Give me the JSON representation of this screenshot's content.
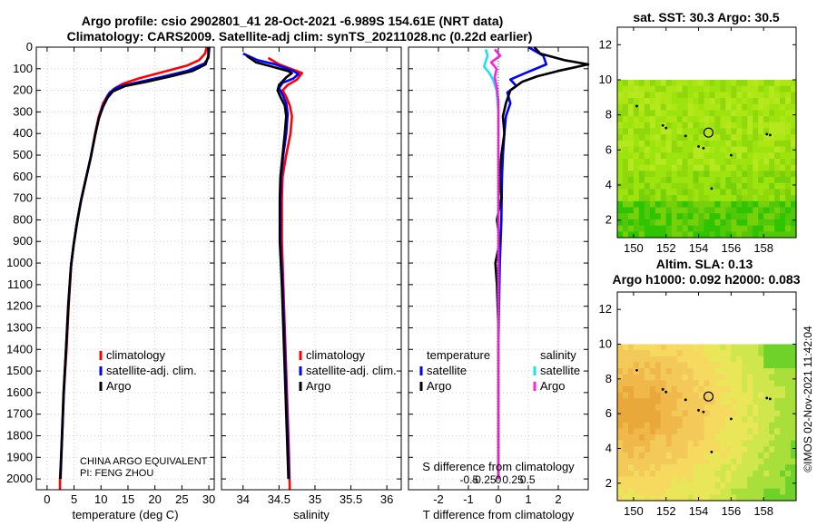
{
  "titles": {
    "line1": "Argo profile: csio 2902801_41 28-Oct-2021 -6.989S 154.61E (NRT data)",
    "line2": "Climatology: CARS2009. Satellite-adj clim: synTS_20211028.nc (0.22d earlier)"
  },
  "colors": {
    "climatology": "#ff0000",
    "satellite": "#0000ff",
    "argo": "#000000",
    "sat_salinity": "#22e0ee",
    "argo_salinity": "#ff22dd"
  },
  "credits": {
    "line1": "CHINA ARGO EQUIVALENT",
    "line2": "PI: FENG ZHOU",
    "watermark": "©IMOS 02-Nov-2021 11:42:04"
  },
  "chart_data": [
    {
      "id": "temperature",
      "type": "line",
      "xlabel": "temperature (deg C)",
      "ylabel": "",
      "xlim": [
        -2,
        31
      ],
      "ylim": [
        0,
        2050
      ],
      "xticks": [
        0,
        5,
        10,
        15,
        20,
        25,
        30
      ],
      "yticks": [
        0,
        100,
        200,
        300,
        400,
        500,
        600,
        700,
        800,
        900,
        1000,
        1100,
        1200,
        1300,
        1400,
        1500,
        1600,
        1700,
        1800,
        1900,
        2000
      ],
      "legend": [
        "climatology",
        "satellite-adj. clim.",
        "Argo"
      ],
      "series": [
        {
          "name": "climatology",
          "color": "#ff0000",
          "points": [
            [
              29.6,
              0
            ],
            [
              29.3,
              30
            ],
            [
              28.2,
              60
            ],
            [
              26,
              85
            ],
            [
              23,
              105
            ],
            [
              20,
              125
            ],
            [
              17,
              145
            ],
            [
              14,
              170
            ],
            [
              12.3,
              195
            ],
            [
              11.3,
              220
            ],
            [
              10.4,
              260
            ],
            [
              9.6,
              320
            ],
            [
              8.9,
              400
            ],
            [
              8.2,
              500
            ],
            [
              7.3,
              600
            ],
            [
              6.4,
              700
            ],
            [
              5.6,
              800
            ],
            [
              5.0,
              900
            ],
            [
              4.5,
              1000
            ],
            [
              4.0,
              1200
            ],
            [
              3.6,
              1400
            ],
            [
              3.1,
              1600
            ],
            [
              2.8,
              1800
            ],
            [
              2.6,
              1900
            ],
            [
              2.4,
              2000
            ],
            [
              2.4,
              2050
            ]
          ]
        },
        {
          "name": "satellite-adj. clim.",
          "color": "#0000ff",
          "points": [
            [
              30.1,
              0
            ],
            [
              30.0,
              25
            ],
            [
              29.9,
              50
            ],
            [
              29.2,
              75
            ],
            [
              26,
              110
            ],
            [
              21,
              140
            ],
            [
              16.5,
              165
            ],
            [
              13,
              185
            ],
            [
              11.6,
              210
            ],
            [
              11.0,
              240
            ],
            [
              10.2,
              280
            ],
            [
              9.5,
              340
            ],
            [
              8.8,
              420
            ],
            [
              8.0,
              520
            ],
            [
              7.1,
              620
            ],
            [
              6.2,
              720
            ],
            [
              5.5,
              820
            ],
            [
              4.9,
              920
            ],
            [
              4.4,
              1020
            ],
            [
              3.9,
              1200
            ],
            [
              3.5,
              1400
            ],
            [
              3.1,
              1600
            ],
            [
              2.8,
              1800
            ],
            [
              2.5,
              2000
            ]
          ]
        },
        {
          "name": "Argo",
          "color": "#000000",
          "points": [
            [
              29.9,
              0
            ],
            [
              29.9,
              40
            ],
            [
              29.4,
              80
            ],
            [
              27,
              110
            ],
            [
              23,
              135
            ],
            [
              18.5,
              160
            ],
            [
              14.5,
              180
            ],
            [
              12.2,
              205
            ],
            [
              11.2,
              235
            ],
            [
              10.4,
              275
            ],
            [
              9.6,
              330
            ],
            [
              8.9,
              410
            ],
            [
              8.1,
              510
            ],
            [
              7.2,
              610
            ],
            [
              6.3,
              710
            ],
            [
              5.6,
              810
            ],
            [
              4.95,
              910
            ],
            [
              4.45,
              1010
            ],
            [
              3.95,
              1200
            ],
            [
              3.5,
              1400
            ],
            [
              3.05,
              1600
            ],
            [
              2.75,
              1800
            ],
            [
              2.45,
              2000
            ]
          ]
        }
      ]
    },
    {
      "id": "salinity",
      "type": "line",
      "xlabel": "salinity",
      "xlim": [
        33.7,
        36.2
      ],
      "ylim": [
        0,
        2050
      ],
      "xticks": [
        34,
        34.5,
        35,
        35.5,
        36
      ],
      "xtick_labels": [
        "34",
        "34.5",
        "35",
        "35.5",
        "36"
      ],
      "legend": [
        "climatology",
        "satellite-adj. clim.",
        "Argo"
      ],
      "series": [
        {
          "name": "climatology",
          "color": "#ff0000",
          "points": [
            [
              34.35,
              50
            ],
            [
              34.5,
              80
            ],
            [
              34.7,
              105
            ],
            [
              34.82,
              120
            ],
            [
              34.75,
              150
            ],
            [
              34.62,
              175
            ],
            [
              34.55,
              200
            ],
            [
              34.6,
              230
            ],
            [
              34.65,
              270
            ],
            [
              34.68,
              320
            ],
            [
              34.66,
              400
            ],
            [
              34.6,
              500
            ],
            [
              34.55,
              600
            ],
            [
              34.54,
              700
            ],
            [
              34.54,
              900
            ],
            [
              34.56,
              1100
            ],
            [
              34.58,
              1300
            ],
            [
              34.6,
              1500
            ],
            [
              34.62,
              1700
            ],
            [
              34.64,
              1900
            ],
            [
              34.65,
              2050
            ]
          ]
        },
        {
          "name": "satellite-adj. clim.",
          "color": "#0000ff",
          "points": [
            [
              34.0,
              30
            ],
            [
              34.2,
              60
            ],
            [
              34.45,
              80
            ],
            [
              34.7,
              110
            ],
            [
              34.77,
              125
            ],
            [
              34.7,
              145
            ],
            [
              34.55,
              165
            ],
            [
              34.5,
              190
            ],
            [
              34.55,
              220
            ],
            [
              34.6,
              260
            ],
            [
              34.62,
              310
            ],
            [
              34.6,
              400
            ],
            [
              34.56,
              500
            ],
            [
              34.53,
              600
            ],
            [
              34.52,
              700
            ],
            [
              34.52,
              900
            ],
            [
              34.55,
              1100
            ],
            [
              34.57,
              1300
            ],
            [
              34.59,
              1500
            ],
            [
              34.61,
              1700
            ],
            [
              34.63,
              1900
            ],
            [
              34.64,
              2000
            ]
          ]
        },
        {
          "name": "Argo",
          "color": "#000000",
          "points": [
            [
              34.05,
              40
            ],
            [
              34.18,
              70
            ],
            [
              34.4,
              90
            ],
            [
              34.62,
              110
            ],
            [
              34.68,
              120
            ],
            [
              34.6,
              140
            ],
            [
              34.5,
              175
            ],
            [
              34.48,
              200
            ],
            [
              34.52,
              230
            ],
            [
              34.58,
              270
            ],
            [
              34.6,
              320
            ],
            [
              34.58,
              400
            ],
            [
              34.55,
              500
            ],
            [
              34.52,
              600
            ],
            [
              34.51,
              700
            ],
            [
              34.51,
              900
            ],
            [
              34.54,
              1100
            ],
            [
              34.56,
              1300
            ],
            [
              34.58,
              1500
            ],
            [
              34.6,
              1700
            ],
            [
              34.62,
              1900
            ],
            [
              34.63,
              2000
            ]
          ]
        }
      ]
    },
    {
      "id": "differences",
      "type": "line",
      "xlabel": "T difference from climatology",
      "xlabel_top": "S difference from climatology",
      "xlim": [
        -3,
        3
      ],
      "ylim": [
        0,
        2050
      ],
      "xticks": [
        -2,
        -1,
        0,
        1,
        2
      ],
      "sticks": [
        -0.5,
        -0.25,
        0,
        0.25,
        0.5
      ],
      "stick_labels": [
        "-0.5",
        "-0.25",
        "0",
        "0.25",
        "0.5"
      ],
      "legend_temperature_title": "temperature",
      "legend_salinity_title": "salinity",
      "legend_temperature": [
        "satellite",
        "Argo"
      ],
      "legend_salinity": [
        "satellite",
        "Argo"
      ],
      "series": [
        {
          "name": "temperature satellite",
          "color": "#0000ff",
          "points": [
            [
              1,
              0
            ],
            [
              1.5,
              40
            ],
            [
              1.6,
              80
            ],
            [
              0.9,
              120
            ],
            [
              0.4,
              150
            ],
            [
              0.6,
              180
            ],
            [
              0.3,
              210
            ],
            [
              0.4,
              260
            ],
            [
              0.25,
              320
            ],
            [
              0.2,
              400
            ],
            [
              0.15,
              500
            ],
            [
              0.12,
              600
            ],
            [
              0.1,
              800
            ],
            [
              0.05,
              1000
            ],
            [
              0.02,
              1200
            ],
            [
              0,
              1400
            ],
            [
              0,
              2000
            ]
          ]
        },
        {
          "name": "temperature Argo",
          "color": "#000000",
          "points": [
            [
              1.2,
              0
            ],
            [
              1.4,
              30
            ],
            [
              2.2,
              60
            ],
            [
              3,
              80
            ],
            [
              2,
              110
            ],
            [
              1.3,
              135
            ],
            [
              0.8,
              160
            ],
            [
              0.4,
              200
            ],
            [
              0.25,
              260
            ],
            [
              0.15,
              320
            ],
            [
              0.2,
              400
            ],
            [
              0.1,
              500
            ],
            [
              0.05,
              600
            ],
            [
              0.1,
              700
            ],
            [
              -0.05,
              800
            ],
            [
              0.05,
              900
            ],
            [
              -0.1,
              1000
            ],
            [
              -0.05,
              1100
            ],
            [
              0,
              1300
            ],
            [
              0,
              2000
            ]
          ]
        },
        {
          "name": "salinity satellite",
          "color": "#22e0ee",
          "points": [
            [
              -0.35,
              10
            ],
            [
              -0.3,
              40
            ],
            [
              -0.4,
              90
            ],
            [
              -0.25,
              120
            ],
            [
              -0.15,
              150
            ],
            [
              -0.05,
              200
            ],
            [
              0,
              300
            ],
            [
              0,
              2000
            ]
          ]
        },
        {
          "name": "salinity Argo",
          "color": "#ff22dd",
          "points": [
            [
              -0.1,
              10
            ],
            [
              0.05,
              40
            ],
            [
              -0.2,
              70
            ],
            [
              -0.05,
              100
            ],
            [
              -0.1,
              140
            ],
            [
              -0.05,
              180
            ],
            [
              0,
              250
            ],
            [
              0,
              2000
            ]
          ]
        }
      ]
    },
    {
      "id": "sst_map",
      "type": "heatmap",
      "title": "sat. SST: 30.3 Argo: 30.5",
      "xlim": [
        149,
        160
      ],
      "ylim": [
        1,
        13
      ],
      "xticks": [
        150,
        152,
        154,
        156,
        158
      ],
      "yticks": [
        2,
        4,
        6,
        8,
        10,
        12
      ],
      "data_top": 10,
      "float_position": [
        154.61,
        6.99
      ],
      "palette": [
        "#9de40f",
        "#aee614",
        "#8fd80c",
        "#b5e81e",
        "#76d00a",
        "#52c808",
        "#2ec402"
      ]
    },
    {
      "id": "sla_map",
      "type": "heatmap",
      "title": "Altim. SLA: 0.13",
      "subtitle": "Argo h1000: 0.092 h2000: 0.083",
      "xlim": [
        149,
        160
      ],
      "ylim": [
        1,
        13
      ],
      "xticks": [
        150,
        152,
        154,
        156,
        158
      ],
      "yticks": [
        2,
        4,
        6,
        8,
        10,
        12
      ],
      "data_top": 10,
      "float_position": [
        154.61,
        6.99
      ],
      "palette": [
        "#e8a93a",
        "#f0b84a",
        "#f3c95a",
        "#f6da60",
        "#eae65a",
        "#cfe64c",
        "#a8df3a",
        "#6ed22a"
      ]
    }
  ]
}
